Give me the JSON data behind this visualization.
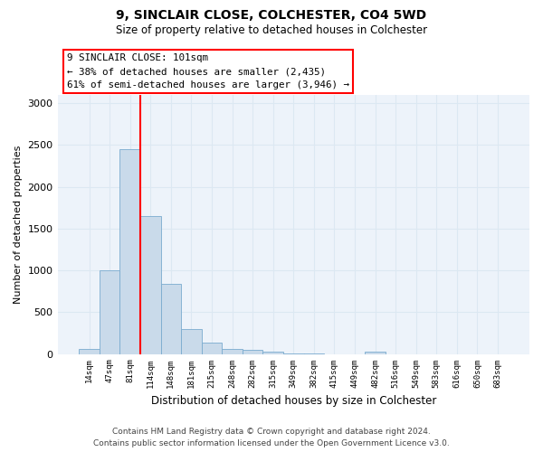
{
  "title1": "9, SINCLAIR CLOSE, COLCHESTER, CO4 5WD",
  "title2": "Size of property relative to detached houses in Colchester",
  "xlabel": "Distribution of detached houses by size in Colchester",
  "ylabel": "Number of detached properties",
  "bar_color": "#c9daea",
  "bar_edge_color": "#7aabcf",
  "vline_color": "red",
  "annotation_text": "9 SINCLAIR CLOSE: 101sqm\n← 38% of detached houses are smaller (2,435)\n61% of semi-detached houses are larger (3,946) →",
  "categories": [
    "14sqm",
    "47sqm",
    "81sqm",
    "114sqm",
    "148sqm",
    "181sqm",
    "215sqm",
    "248sqm",
    "282sqm",
    "315sqm",
    "349sqm",
    "382sqm",
    "415sqm",
    "449sqm",
    "482sqm",
    "516sqm",
    "549sqm",
    "583sqm",
    "616sqm",
    "650sqm",
    "683sqm"
  ],
  "values": [
    55,
    1000,
    2450,
    1650,
    840,
    295,
    140,
    55,
    50,
    30,
    10,
    5,
    0,
    0,
    30,
    0,
    0,
    0,
    0,
    0,
    0
  ],
  "ylim": [
    0,
    3100
  ],
  "yticks": [
    0,
    500,
    1000,
    1500,
    2000,
    2500,
    3000
  ],
  "grid_color": "#dce8f2",
  "bg_color": "#edf3fa",
  "footer1": "Contains HM Land Registry data © Crown copyright and database right 2024.",
  "footer2": "Contains public sector information licensed under the Open Government Licence v3.0."
}
